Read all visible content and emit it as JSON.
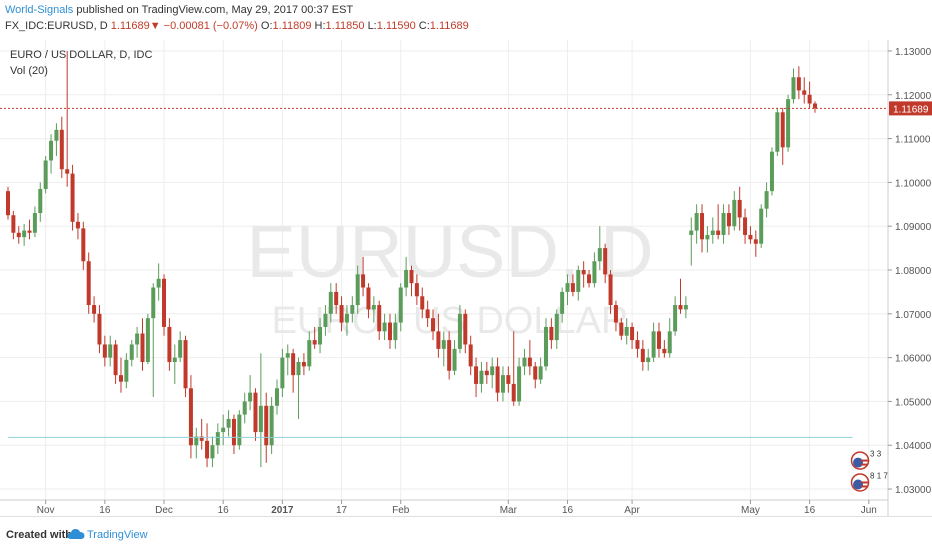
{
  "header": {
    "author": "World-Signals",
    "published": "published on TradingView.com, May 29, 2017 00:37 EST",
    "symbol": "FX_IDC:EURUSD, D",
    "last": "1.11689",
    "change_arrow": "▼",
    "change": "−0.00081 (−0.07%)",
    "o_label": "O:",
    "o": "1.11809",
    "h_label": "H:",
    "h": "1.11850",
    "l_label": "L:",
    "l": "1.11590",
    "c_label": "C:",
    "c": "1.11689"
  },
  "footer": {
    "created_with": "Created with",
    "brand": "TradingView",
    "logo_icon": "tradingview-cloud-icon"
  },
  "colors": {
    "up": "#5b9c5b",
    "down": "#c0392b",
    "price_line": "#c0392b",
    "support_line": "#8fd0d8",
    "grid": "#eeeeee",
    "axis_text": "#555555",
    "watermark": "#e9e9e9"
  },
  "chart_data": {
    "type": "candlestick",
    "title": "EURO / US DOLLAR, D, IDC",
    "indicator": "Vol (20)",
    "watermark": "EURUSD, D",
    "watermark_sub": "EURO / US DOLLAR",
    "ylim": [
      1.0275,
      1.1325
    ],
    "y_ticks": [
      "1.13000",
      "1.12000",
      "1.11000",
      "1.10000",
      "1.09000",
      "1.08000",
      "1.07000",
      "1.06000",
      "1.05000",
      "1.04000",
      "1.03000"
    ],
    "x_ticks": [
      {
        "label": "Nov",
        "i": 7,
        "bold": false
      },
      {
        "label": "16",
        "i": 18,
        "bold": false
      },
      {
        "label": "Dec",
        "i": 29,
        "bold": false
      },
      {
        "label": "16",
        "i": 40,
        "bold": false
      },
      {
        "label": "2017",
        "i": 51,
        "bold": true
      },
      {
        "label": "17",
        "i": 62,
        "bold": false
      },
      {
        "label": "Feb",
        "i": 73,
        "bold": false
      },
      {
        "label": "Mar",
        "i": 93,
        "bold": false
      },
      {
        "label": "16",
        "i": 104,
        "bold": false
      },
      {
        "label": "Apr",
        "i": 116,
        "bold": false
      },
      {
        "label": "May",
        "i": 138,
        "bold": false
      },
      {
        "label": "16",
        "i": 149,
        "bold": false
      },
      {
        "label": "Jun",
        "i": 160,
        "bold": false
      }
    ],
    "price_line": {
      "value": 1.11689,
      "label": "1.11689"
    },
    "support_line": {
      "value": 1.0418,
      "from_i": 0,
      "to_i": 157
    },
    "date_range": [
      "2016-10-25",
      "2017-05-26"
    ],
    "event_badges": [
      {
        "text": "3 3",
        "i": 158,
        "value": 1.0365
      },
      {
        "text": "8 1 7",
        "i": 158,
        "value": 1.0315
      }
    ],
    "candles": [
      {
        "o": 1.098,
        "h": 1.099,
        "l": 1.0915,
        "c": 1.0925
      },
      {
        "o": 1.0925,
        "h": 1.0935,
        "l": 1.087,
        "c": 1.0885
      },
      {
        "o": 1.0885,
        "h": 1.09,
        "l": 1.086,
        "c": 1.0875
      },
      {
        "o": 1.0875,
        "h": 1.0905,
        "l": 1.0855,
        "c": 1.089
      },
      {
        "o": 1.089,
        "h": 1.0915,
        "l": 1.087,
        "c": 1.0885
      },
      {
        "o": 1.0885,
        "h": 1.0945,
        "l": 1.0875,
        "c": 1.093
      },
      {
        "o": 1.093,
        "h": 1.1,
        "l": 1.091,
        "c": 1.0985
      },
      {
        "o": 1.0985,
        "h": 1.106,
        "l": 1.0975,
        "c": 1.105
      },
      {
        "o": 1.105,
        "h": 1.111,
        "l": 1.102,
        "c": 1.1095
      },
      {
        "o": 1.1095,
        "h": 1.1135,
        "l": 1.106,
        "c": 1.112
      },
      {
        "o": 1.112,
        "h": 1.115,
        "l": 1.101,
        "c": 1.103
      },
      {
        "o": 1.103,
        "h": 1.13,
        "l": 1.099,
        "c": 1.102
      },
      {
        "o": 1.102,
        "h": 1.104,
        "l": 1.089,
        "c": 1.091
      },
      {
        "o": 1.091,
        "h": 1.093,
        "l": 1.087,
        "c": 1.0895
      },
      {
        "o": 1.0895,
        "h": 1.091,
        "l": 1.08,
        "c": 1.082
      },
      {
        "o": 1.082,
        "h": 1.084,
        "l": 1.07,
        "c": 1.072
      },
      {
        "o": 1.072,
        "h": 1.074,
        "l": 1.068,
        "c": 1.07
      },
      {
        "o": 1.07,
        "h": 1.072,
        "l": 1.061,
        "c": 1.063
      },
      {
        "o": 1.063,
        "h": 1.065,
        "l": 1.058,
        "c": 1.06
      },
      {
        "o": 1.06,
        "h": 1.065,
        "l": 1.058,
        "c": 1.063
      },
      {
        "o": 1.063,
        "h": 1.064,
        "l": 1.054,
        "c": 1.056
      },
      {
        "o": 1.056,
        "h": 1.06,
        "l": 1.052,
        "c": 1.0545
      },
      {
        "o": 1.0545,
        "h": 1.061,
        "l": 1.053,
        "c": 1.0595
      },
      {
        "o": 1.0595,
        "h": 1.064,
        "l": 1.058,
        "c": 1.063
      },
      {
        "o": 1.063,
        "h": 1.067,
        "l": 1.06,
        "c": 1.0655
      },
      {
        "o": 1.0655,
        "h": 1.069,
        "l": 1.057,
        "c": 1.059
      },
      {
        "o": 1.059,
        "h": 1.07,
        "l": 1.0585,
        "c": 1.069
      },
      {
        "o": 1.069,
        "h": 1.077,
        "l": 1.051,
        "c": 1.076
      },
      {
        "o": 1.076,
        "h": 1.0815,
        "l": 1.073,
        "c": 1.078
      },
      {
        "o": 1.078,
        "h": 1.079,
        "l": 1.065,
        "c": 1.067
      },
      {
        "o": 1.067,
        "h": 1.069,
        "l": 1.057,
        "c": 1.059
      },
      {
        "o": 1.059,
        "h": 1.063,
        "l": 1.054,
        "c": 1.06
      },
      {
        "o": 1.06,
        "h": 1.066,
        "l": 1.059,
        "c": 1.064
      },
      {
        "o": 1.064,
        "h": 1.065,
        "l": 1.051,
        "c": 1.053
      },
      {
        "o": 1.053,
        "h": 1.056,
        "l": 1.037,
        "c": 1.04
      },
      {
        "o": 1.04,
        "h": 1.044,
        "l": 1.037,
        "c": 1.042
      },
      {
        "o": 1.042,
        "h": 1.046,
        "l": 1.039,
        "c": 1.041
      },
      {
        "o": 1.041,
        "h": 1.045,
        "l": 1.035,
        "c": 1.037
      },
      {
        "o": 1.037,
        "h": 1.042,
        "l": 1.035,
        "c": 1.04
      },
      {
        "o": 1.04,
        "h": 1.045,
        "l": 1.038,
        "c": 1.043
      },
      {
        "o": 1.043,
        "h": 1.047,
        "l": 1.04,
        "c": 1.044
      },
      {
        "o": 1.044,
        "h": 1.048,
        "l": 1.042,
        "c": 1.046
      },
      {
        "o": 1.046,
        "h": 1.047,
        "l": 1.038,
        "c": 1.04
      },
      {
        "o": 1.04,
        "h": 1.048,
        "l": 1.039,
        "c": 1.047
      },
      {
        "o": 1.047,
        "h": 1.052,
        "l": 1.045,
        "c": 1.05
      },
      {
        "o": 1.05,
        "h": 1.056,
        "l": 1.048,
        "c": 1.052
      },
      {
        "o": 1.052,
        "h": 1.053,
        "l": 1.041,
        "c": 1.043
      },
      {
        "o": 1.043,
        "h": 1.061,
        "l": 1.035,
        "c": 1.049
      },
      {
        "o": 1.049,
        "h": 1.052,
        "l": 1.036,
        "c": 1.04
      },
      {
        "o": 1.04,
        "h": 1.051,
        "l": 1.038,
        "c": 1.049
      },
      {
        "o": 1.049,
        "h": 1.055,
        "l": 1.047,
        "c": 1.053
      },
      {
        "o": 1.053,
        "h": 1.062,
        "l": 1.051,
        "c": 1.06
      },
      {
        "o": 1.06,
        "h": 1.063,
        "l": 1.056,
        "c": 1.061
      },
      {
        "o": 1.061,
        "h": 1.062,
        "l": 1.052,
        "c": 1.056
      },
      {
        "o": 1.056,
        "h": 1.06,
        "l": 1.046,
        "c": 1.059
      },
      {
        "o": 1.059,
        "h": 1.061,
        "l": 1.056,
        "c": 1.058
      },
      {
        "o": 1.058,
        "h": 1.066,
        "l": 1.057,
        "c": 1.064
      },
      {
        "o": 1.064,
        "h": 1.067,
        "l": 1.062,
        "c": 1.063
      },
      {
        "o": 1.063,
        "h": 1.069,
        "l": 1.061,
        "c": 1.067
      },
      {
        "o": 1.067,
        "h": 1.072,
        "l": 1.065,
        "c": 1.07
      },
      {
        "o": 1.07,
        "h": 1.077,
        "l": 1.068,
        "c": 1.075
      },
      {
        "o": 1.075,
        "h": 1.077,
        "l": 1.07,
        "c": 1.072
      },
      {
        "o": 1.072,
        "h": 1.074,
        "l": 1.066,
        "c": 1.068
      },
      {
        "o": 1.068,
        "h": 1.072,
        "l": 1.065,
        "c": 1.07
      },
      {
        "o": 1.07,
        "h": 1.074,
        "l": 1.068,
        "c": 1.072
      },
      {
        "o": 1.072,
        "h": 1.081,
        "l": 1.07,
        "c": 1.079
      },
      {
        "o": 1.079,
        "h": 1.083,
        "l": 1.074,
        "c": 1.076
      },
      {
        "o": 1.076,
        "h": 1.077,
        "l": 1.069,
        "c": 1.071
      },
      {
        "o": 1.071,
        "h": 1.074,
        "l": 1.068,
        "c": 1.072
      },
      {
        "o": 1.072,
        "h": 1.073,
        "l": 1.064,
        "c": 1.066
      },
      {
        "o": 1.066,
        "h": 1.07,
        "l": 1.064,
        "c": 1.068
      },
      {
        "o": 1.068,
        "h": 1.07,
        "l": 1.062,
        "c": 1.064
      },
      {
        "o": 1.064,
        "h": 1.07,
        "l": 1.062,
        "c": 1.068
      },
      {
        "o": 1.068,
        "h": 1.077,
        "l": 1.066,
        "c": 1.076
      },
      {
        "o": 1.076,
        "h": 1.083,
        "l": 1.074,
        "c": 1.08
      },
      {
        "o": 1.08,
        "h": 1.081,
        "l": 1.074,
        "c": 1.077
      },
      {
        "o": 1.077,
        "h": 1.079,
        "l": 1.072,
        "c": 1.074
      },
      {
        "o": 1.074,
        "h": 1.076,
        "l": 1.069,
        "c": 1.071
      },
      {
        "o": 1.071,
        "h": 1.073,
        "l": 1.067,
        "c": 1.069
      },
      {
        "o": 1.069,
        "h": 1.071,
        "l": 1.064,
        "c": 1.066
      },
      {
        "o": 1.066,
        "h": 1.07,
        "l": 1.06,
        "c": 1.062
      },
      {
        "o": 1.062,
        "h": 1.066,
        "l": 1.058,
        "c": 1.064
      },
      {
        "o": 1.064,
        "h": 1.066,
        "l": 1.055,
        "c": 1.057
      },
      {
        "o": 1.057,
        "h": 1.064,
        "l": 1.056,
        "c": 1.062
      },
      {
        "o": 1.062,
        "h": 1.072,
        "l": 1.061,
        "c": 1.07
      },
      {
        "o": 1.07,
        "h": 1.071,
        "l": 1.061,
        "c": 1.063
      },
      {
        "o": 1.063,
        "h": 1.065,
        "l": 1.056,
        "c": 1.058
      },
      {
        "o": 1.058,
        "h": 1.06,
        "l": 1.051,
        "c": 1.054
      },
      {
        "o": 1.054,
        "h": 1.059,
        "l": 1.052,
        "c": 1.057
      },
      {
        "o": 1.057,
        "h": 1.059,
        "l": 1.054,
        "c": 1.056
      },
      {
        "o": 1.056,
        "h": 1.06,
        "l": 1.053,
        "c": 1.058
      },
      {
        "o": 1.058,
        "h": 1.06,
        "l": 1.05,
        "c": 1.052
      },
      {
        "o": 1.052,
        "h": 1.058,
        "l": 1.05,
        "c": 1.056
      },
      {
        "o": 1.056,
        "h": 1.058,
        "l": 1.052,
        "c": 1.054
      },
      {
        "o": 1.054,
        "h": 1.066,
        "l": 1.049,
        "c": 1.05
      },
      {
        "o": 1.05,
        "h": 1.06,
        "l": 1.049,
        "c": 1.058
      },
      {
        "o": 1.058,
        "h": 1.062,
        "l": 1.056,
        "c": 1.06
      },
      {
        "o": 1.06,
        "h": 1.064,
        "l": 1.056,
        "c": 1.058
      },
      {
        "o": 1.058,
        "h": 1.059,
        "l": 1.053,
        "c": 1.055
      },
      {
        "o": 1.055,
        "h": 1.06,
        "l": 1.054,
        "c": 1.058
      },
      {
        "o": 1.058,
        "h": 1.069,
        "l": 1.057,
        "c": 1.067
      },
      {
        "o": 1.067,
        "h": 1.069,
        "l": 1.062,
        "c": 1.064
      },
      {
        "o": 1.064,
        "h": 1.071,
        "l": 1.062,
        "c": 1.07
      },
      {
        "o": 1.07,
        "h": 1.076,
        "l": 1.068,
        "c": 1.075
      },
      {
        "o": 1.075,
        "h": 1.079,
        "l": 1.072,
        "c": 1.077
      },
      {
        "o": 1.077,
        "h": 1.079,
        "l": 1.074,
        "c": 1.075
      },
      {
        "o": 1.075,
        "h": 1.081,
        "l": 1.073,
        "c": 1.08
      },
      {
        "o": 1.08,
        "h": 1.082,
        "l": 1.076,
        "c": 1.079
      },
      {
        "o": 1.079,
        "h": 1.08,
        "l": 1.076,
        "c": 1.077
      },
      {
        "o": 1.077,
        "h": 1.084,
        "l": 1.076,
        "c": 1.082
      },
      {
        "o": 1.082,
        "h": 1.09,
        "l": 1.08,
        "c": 1.085
      },
      {
        "o": 1.085,
        "h": 1.086,
        "l": 1.077,
        "c": 1.079
      },
      {
        "o": 1.079,
        "h": 1.08,
        "l": 1.07,
        "c": 1.072
      },
      {
        "o": 1.072,
        "h": 1.073,
        "l": 1.066,
        "c": 1.068
      },
      {
        "o": 1.068,
        "h": 1.069,
        "l": 1.064,
        "c": 1.065
      },
      {
        "o": 1.065,
        "h": 1.069,
        "l": 1.063,
        "c": 1.067
      },
      {
        "o": 1.067,
        "h": 1.068,
        "l": 1.062,
        "c": 1.064
      },
      {
        "o": 1.064,
        "h": 1.066,
        "l": 1.06,
        "c": 1.062
      },
      {
        "o": 1.062,
        "h": 1.064,
        "l": 1.057,
        "c": 1.059
      },
      {
        "o": 1.059,
        "h": 1.062,
        "l": 1.057,
        "c": 1.06
      },
      {
        "o": 1.06,
        "h": 1.068,
        "l": 1.059,
        "c": 1.066
      },
      {
        "o": 1.066,
        "h": 1.068,
        "l": 1.06,
        "c": 1.062
      },
      {
        "o": 1.062,
        "h": 1.064,
        "l": 1.06,
        "c": 1.061
      },
      {
        "o": 1.061,
        "h": 1.069,
        "l": 1.06,
        "c": 1.066
      },
      {
        "o": 1.066,
        "h": 1.074,
        "l": 1.065,
        "c": 1.072
      },
      {
        "o": 1.072,
        "h": 1.078,
        "l": 1.07,
        "c": 1.071
      },
      {
        "o": 1.071,
        "h": 1.074,
        "l": 1.069,
        "c": 1.072
      },
      {
        "o": 1.088,
        "h": 1.092,
        "l": 1.081,
        "c": 1.089
      },
      {
        "o": 1.089,
        "h": 1.095,
        "l": 1.086,
        "c": 1.093
      },
      {
        "o": 1.093,
        "h": 1.095,
        "l": 1.084,
        "c": 1.087
      },
      {
        "o": 1.087,
        "h": 1.09,
        "l": 1.084,
        "c": 1.088
      },
      {
        "o": 1.088,
        "h": 1.092,
        "l": 1.086,
        "c": 1.089
      },
      {
        "o": 1.089,
        "h": 1.095,
        "l": 1.087,
        "c": 1.088
      },
      {
        "o": 1.088,
        "h": 1.095,
        "l": 1.086,
        "c": 1.093
      },
      {
        "o": 1.093,
        "h": 1.095,
        "l": 1.088,
        "c": 1.09
      },
      {
        "o": 1.09,
        "h": 1.098,
        "l": 1.089,
        "c": 1.096
      },
      {
        "o": 1.096,
        "h": 1.099,
        "l": 1.089,
        "c": 1.092
      },
      {
        "o": 1.092,
        "h": 1.094,
        "l": 1.086,
        "c": 1.088
      },
      {
        "o": 1.088,
        "h": 1.09,
        "l": 1.086,
        "c": 1.087
      },
      {
        "o": 1.087,
        "h": 1.089,
        "l": 1.083,
        "c": 1.086
      },
      {
        "o": 1.086,
        "h": 1.095,
        "l": 1.085,
        "c": 1.094
      },
      {
        "o": 1.094,
        "h": 1.1,
        "l": 1.092,
        "c": 1.098
      },
      {
        "o": 1.098,
        "h": 1.108,
        "l": 1.097,
        "c": 1.107
      },
      {
        "o": 1.107,
        "h": 1.117,
        "l": 1.106,
        "c": 1.116
      },
      {
        "o": 1.116,
        "h": 1.117,
        "l": 1.104,
        "c": 1.108
      },
      {
        "o": 1.108,
        "h": 1.12,
        "l": 1.107,
        "c": 1.119
      },
      {
        "o": 1.119,
        "h": 1.126,
        "l": 1.118,
        "c": 1.124
      },
      {
        "o": 1.124,
        "h": 1.1265,
        "l": 1.119,
        "c": 1.121
      },
      {
        "o": 1.121,
        "h": 1.124,
        "l": 1.118,
        "c": 1.12
      },
      {
        "o": 1.12,
        "h": 1.123,
        "l": 1.117,
        "c": 1.118
      },
      {
        "o": 1.118,
        "h": 1.1185,
        "l": 1.1159,
        "c": 1.1169
      }
    ]
  }
}
